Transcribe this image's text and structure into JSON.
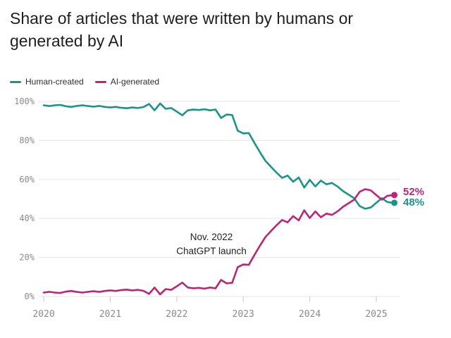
{
  "title_lines": [
    "Share of articles that were written by humans or",
    "generated by AI"
  ],
  "legend": [
    {
      "label": "Human-created",
      "color": "#1a948a"
    },
    {
      "label": "AI-generated",
      "color": "#bb2578"
    }
  ],
  "annotation": {
    "line1": "Nov. 2022",
    "line2": "ChatGPT launch"
  },
  "end_labels": [
    {
      "text": "52%",
      "color": "#bb2578"
    },
    {
      "text": "48%",
      "color": "#1a948a"
    }
  ],
  "colors": {
    "teal": "#1a948a",
    "magenta": "#bb2578",
    "grid": "#e5e5e5",
    "tick": "#c9c9c9",
    "axis_text": "#8a8a8a"
  },
  "chart_data": {
    "type": "line",
    "title": "Share of articles that were written by humans or generated by AI",
    "xlabel": "",
    "ylabel": "",
    "x_start_year": 2020,
    "points_per_year": 12,
    "x_range_note": "monthly values, Jan 2020 through Apr 2025",
    "xlim": [
      2020,
      2025.4
    ],
    "ylim": [
      0,
      100
    ],
    "grid": "horizontal",
    "legend_position": "top-left",
    "xticks": [
      2020,
      2021,
      2022,
      2023,
      2024,
      2025
    ],
    "xtick_labels": [
      "2020",
      "2021",
      "2022",
      "2023",
      "2024",
      "2025"
    ],
    "yticks": [
      0,
      20,
      40,
      60,
      80,
      100
    ],
    "ytick_labels": [
      "0%",
      "20%",
      "40%",
      "60%",
      "80%",
      "100%"
    ],
    "annotation": {
      "text": "Nov. 2022 ChatGPT launch",
      "x": 2022.83
    },
    "series": [
      {
        "name": "Human-created",
        "color": "#1a948a",
        "end_label": "48%",
        "values": [
          98.0,
          97.6,
          98.0,
          98.2,
          97.5,
          97.2,
          97.7,
          98.0,
          97.6,
          97.3,
          97.7,
          97.2,
          96.9,
          97.2,
          96.7,
          96.5,
          96.9,
          96.6,
          97.1,
          98.7,
          95.4,
          98.9,
          96.2,
          96.6,
          94.8,
          92.9,
          95.4,
          95.8,
          95.6,
          96.0,
          95.4,
          95.8,
          91.5,
          93.3,
          93.0,
          85.0,
          83.6,
          83.8,
          78.8,
          74.0,
          69.5,
          66.5,
          63.5,
          60.8,
          62.0,
          58.8,
          61.0,
          55.8,
          59.8,
          56.4,
          59.4,
          57.5,
          58.2,
          56.4,
          54.0,
          52.2,
          50.4,
          46.3,
          45.0,
          45.6,
          48.0,
          50.4,
          48.4,
          48.0
        ]
      },
      {
        "name": "AI-generated",
        "color": "#bb2578",
        "end_label": "52%",
        "values": [
          2.0,
          2.4,
          2.0,
          1.8,
          2.5,
          2.8,
          2.3,
          2.0,
          2.4,
          2.7,
          2.3,
          2.8,
          3.1,
          2.8,
          3.3,
          3.5,
          3.1,
          3.4,
          2.9,
          1.3,
          4.6,
          1.1,
          3.8,
          3.4,
          5.2,
          7.1,
          4.6,
          4.2,
          4.4,
          4.0,
          4.6,
          4.2,
          8.5,
          6.7,
          7.0,
          15.0,
          16.4,
          16.2,
          21.2,
          26.0,
          30.5,
          33.5,
          36.5,
          39.2,
          38.0,
          41.2,
          39.0,
          44.2,
          40.2,
          43.6,
          40.6,
          42.5,
          41.8,
          43.6,
          46.0,
          47.8,
          49.6,
          53.7,
          55.0,
          54.4,
          52.0,
          49.6,
          51.6,
          52.0
        ]
      }
    ]
  }
}
